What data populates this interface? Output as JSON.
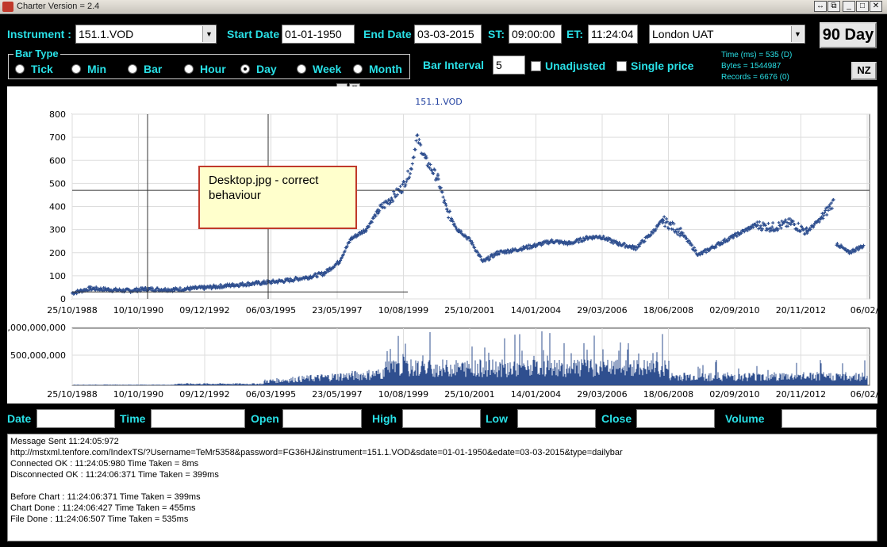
{
  "window": {
    "title": "Charter Version = 2.4",
    "buttons": [
      "↔",
      "⧉",
      "_",
      "□",
      "✕"
    ]
  },
  "toolbar": {
    "instrument_label": "Instrument :",
    "instrument_value": "151.1.VOD",
    "start_label": "Start Date",
    "start_value": "01-01-1950",
    "end_label": "End Date",
    "end_value": "03-03-2015",
    "st_label": "ST:",
    "st_value": "09:00:00",
    "et_label": "ET:",
    "et_value": "11:24:04",
    "server_value": "London UAT",
    "day90_label": "90 Day",
    "nz_label": "NZ"
  },
  "bar_type": {
    "legend": "Bar Type",
    "options": [
      {
        "label": "Tick",
        "selected": false
      },
      {
        "label": "Min",
        "selected": false
      },
      {
        "label": "Bar",
        "selected": false
      },
      {
        "label": "Hour",
        "selected": false
      },
      {
        "label": "Day",
        "selected": true
      },
      {
        "label": "Week",
        "selected": false
      },
      {
        "label": "Month",
        "selected": false
      }
    ]
  },
  "bar_interval": {
    "label": "Bar Interval",
    "value": "5"
  },
  "unadjusted_label": "Unadjusted",
  "single_price_label": "Single price",
  "stats": {
    "time": "Time (ms) = 535 (D)",
    "bytes": "Bytes = 1544987",
    "records": "Records = 6676 (0)"
  },
  "annotation": "Desktop.jpg - correct behaviour",
  "chart_data": [
    {
      "type": "line",
      "title": "151.1.VOD",
      "x_ticks": [
        "25/10/1988",
        "10/10/1990",
        "09/12/1992",
        "06/03/1995",
        "23/05/1997",
        "10/08/1999",
        "25/10/2001",
        "14/01/2004",
        "29/03/2006",
        "18/06/2008",
        "02/09/2010",
        "20/11/2012",
        "06/02/2"
      ],
      "y_ticks": [
        "0",
        "100",
        "200",
        "300",
        "400",
        "500",
        "600",
        "700",
        "800"
      ],
      "ylim": [
        0,
        800
      ],
      "xlim": [
        1988.6,
        2015.2
      ],
      "grid": true,
      "series_color": "#2f4f8f",
      "x": [
        1988.6,
        1989.2,
        1989.8,
        1990.5,
        1991.0,
        1992.0,
        1993.0,
        1994.0,
        1995.0,
        1995.8,
        1996.5,
        1997.0,
        1997.5,
        1997.9,
        1998.4,
        1998.8,
        1999.2,
        1999.6,
        1999.9,
        2000.1,
        2000.4,
        2000.8,
        2001.1,
        2001.5,
        2001.9,
        2002.3,
        2002.8,
        2003.3,
        2004.0,
        2004.6,
        2005.2,
        2005.8,
        2006.2,
        2006.8,
        2007.4,
        2007.9,
        2008.3,
        2008.9,
        2009.5,
        2010.2,
        2010.8,
        2011.4,
        2012.0,
        2012.6,
        2013.1,
        2013.6,
        2014.0,
        2014.1,
        2014.5,
        2015.0
      ],
      "y": [
        25,
        45,
        40,
        35,
        42,
        40,
        48,
        60,
        70,
        80,
        95,
        110,
        160,
        260,
        300,
        380,
        430,
        480,
        560,
        700,
        600,
        520,
        380,
        300,
        250,
        160,
        200,
        210,
        230,
        250,
        240,
        265,
        270,
        240,
        220,
        280,
        340,
        290,
        190,
        240,
        280,
        320,
        310,
        330,
        290,
        350,
        420,
        240,
        200,
        230
      ]
    },
    {
      "type": "bar",
      "title": "",
      "x_ticks": [
        "25/10/1988",
        "10/10/1990",
        "09/12/1992",
        "06/03/1995",
        "23/05/1997",
        "10/08/1999",
        "25/10/2001",
        "14/01/2004",
        "29/03/2006",
        "18/06/2008",
        "02/09/2010",
        "20/11/2012",
        "06/02/2"
      ],
      "y_ticks": [
        ",000,000,000",
        "500,000,000"
      ],
      "ylim": [
        0,
        1000000000
      ],
      "series_color": "#2f4f8f"
    }
  ],
  "data_fields": {
    "date_label": "Date",
    "time_label": "Time",
    "open_label": "Open",
    "high_label": "High",
    "low_label": "Low",
    "close_label": "Close",
    "volume_label": "Volume"
  },
  "log_lines": [
    "Message Sent 11:24:05:972",
    "http://mstxml.tenfore.com/IndexTS/?Username=TeMr5358&password=FG36HJ&instrument=151.1.VOD&sdate=01-01-1950&edate=03-03-2015&type=dailybar",
    "Connected OK : 11:24:05:980 Time Taken = 8ms",
    "Disconnected OK : 11:24:06:371 Time Taken = 399ms",
    "",
    "Before Chart  : 11:24:06:371 Time Taken = 399ms",
    "Chart Done : 11:24:06:427 Time Taken = 455ms",
    "File Done : 11:24:06:507 Time Taken = 535ms"
  ]
}
